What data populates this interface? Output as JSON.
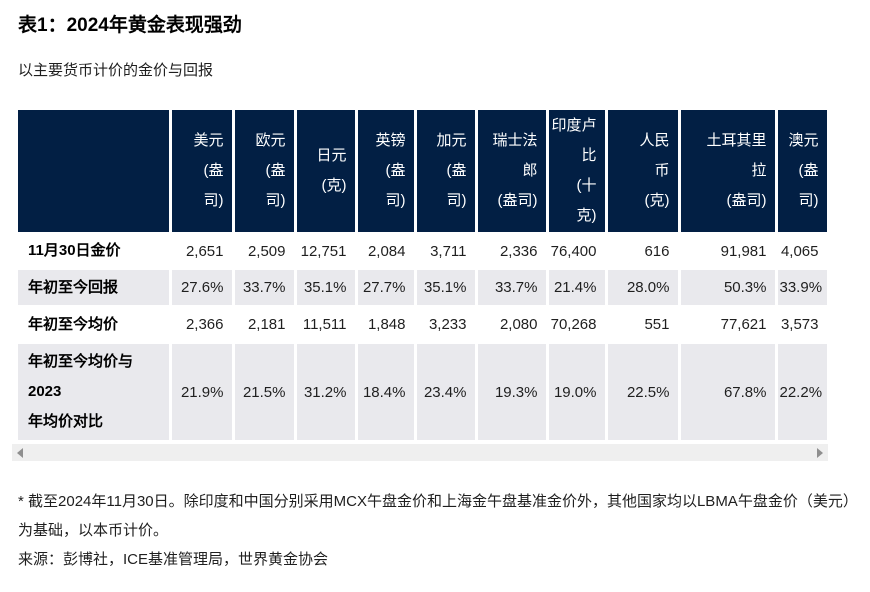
{
  "page": {
    "title": "表1：2024年黄金表现强劲",
    "subtitle": "以主要货币计价的金价与回报"
  },
  "table": {
    "columns": [
      {
        "id": "usd",
        "label": "美元\n(盎\n司)"
      },
      {
        "id": "eur",
        "label": "欧元\n(盎\n司)"
      },
      {
        "id": "jpy",
        "label": "日元\n(克)"
      },
      {
        "id": "gbp",
        "label": "英镑\n(盎\n司)"
      },
      {
        "id": "cad",
        "label": "加元\n(盎\n司)"
      },
      {
        "id": "chf",
        "label": "瑞士法\n郎\n(盎司)"
      },
      {
        "id": "inr",
        "label": "印度卢\n比\n(十\n克)"
      },
      {
        "id": "rmb",
        "label": "人民\n币\n(克)"
      },
      {
        "id": "try",
        "label": "土耳其里\n拉\n(盎司)"
      },
      {
        "id": "aud",
        "label": "澳元\n(盎\n司)"
      }
    ],
    "rows": [
      {
        "id": "price-nov30",
        "label": "11月30日金价",
        "values": [
          "2,651",
          "2,509",
          "12,751",
          "2,084",
          "3,711",
          "2,336",
          "76,400",
          "616",
          "91,981",
          "4,065"
        ]
      },
      {
        "id": "ytd-return",
        "label": "年初至今回报",
        "values": [
          "27.6%",
          "33.7%",
          "35.1%",
          "27.7%",
          "35.1%",
          "33.7%",
          "21.4%",
          "28.0%",
          "50.3%",
          "33.9%"
        ]
      },
      {
        "id": "ytd-average",
        "label": "年初至今均价",
        "values": [
          "2,366",
          "2,181",
          "11,511",
          "1,848",
          "3,233",
          "2,080",
          "70,268",
          "551",
          "77,621",
          "3,573"
        ]
      },
      {
        "id": "ytd-average-vs-2023",
        "label": "年初至今均价与\n2023\n年均价对比",
        "values": [
          "21.9%",
          "21.5%",
          "31.2%",
          "18.4%",
          "23.4%",
          "19.3%",
          "19.0%",
          "22.5%",
          "67.8%",
          "22.2%"
        ]
      }
    ]
  },
  "scrollbar": {
    "left_arrow": "scroll-left",
    "right_arrow": "scroll-right"
  },
  "footnotes": {
    "note": "* 截至2024年11月30日。除印度和中国分别采用MCX午盘金价和上海金午盘基准金价外，其他国家均以LBMA午盘金价（美元）为基础，以本币计价。",
    "source": "来源：彭博社，ICE基准管理局，世界黄金协会"
  },
  "colors": {
    "header_bg": "#021F44",
    "alt_row_bg": "#E9E9ED",
    "scrollbar_track": "#EFEFEF",
    "scrollbar_arrow": "#8F8F8F"
  }
}
